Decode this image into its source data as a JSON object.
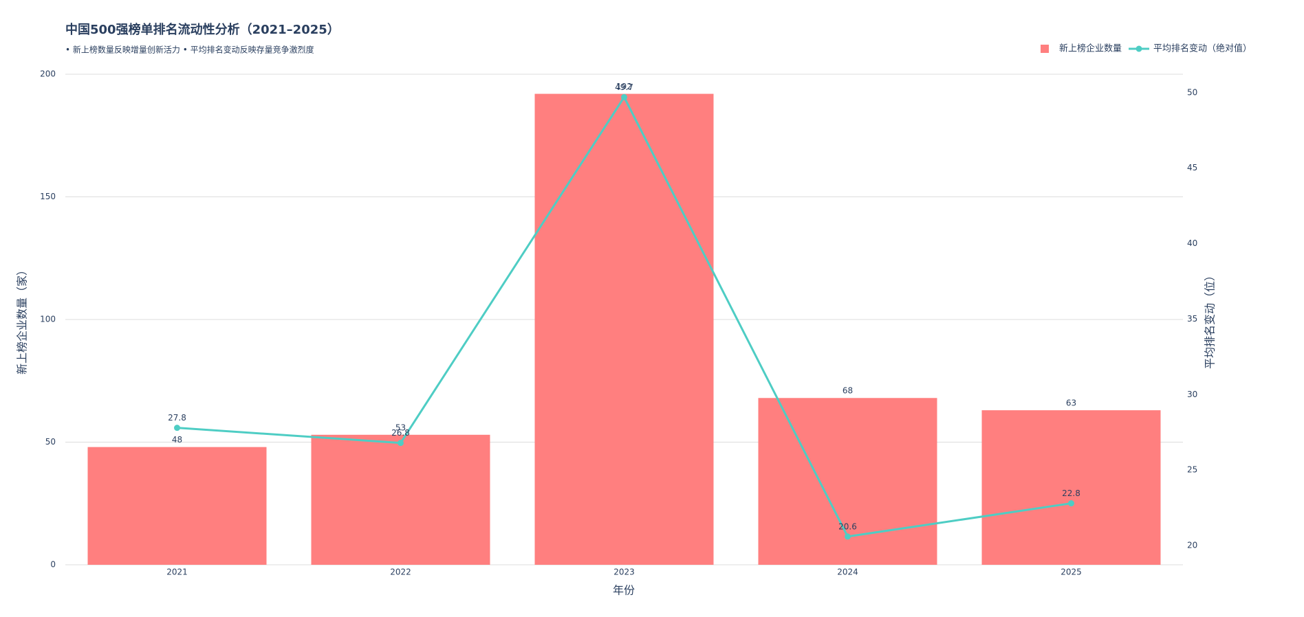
{
  "chart_data": {
    "type": "bar_line",
    "title": "中国500强榜单排名流动性分析（2021–2025）",
    "subtitle": "• 新上榜数量反映增量创新活力 • 平均排名变动反映存量竞争激烈度",
    "x_label": "年份",
    "y_label": "新上榜企业数量（家）",
    "y2_label": "平均排名变动（位）",
    "categories": [
      "2021",
      "2022",
      "2023",
      "2024",
      "2025"
    ],
    "series": [
      {
        "name": "新上榜企业数量",
        "type": "bar",
        "color": "#ff7f7f",
        "values": [
          48,
          53,
          192,
          68,
          63
        ]
      },
      {
        "name": "平均排名变动（绝对值）",
        "type": "line",
        "axis": "y2",
        "color": "#4ecdc4",
        "values": [
          27.8,
          26.8,
          49.7,
          20.6,
          22.8
        ]
      }
    ],
    "ylim": [
      0,
      200
    ],
    "yticks": [
      0,
      50,
      100,
      150,
      200
    ],
    "y2lim": [
      18.73,
      51.22
    ],
    "y2ticks": [
      20,
      25,
      30,
      35,
      40,
      45,
      50
    ],
    "grid": true,
    "legend": "top-right"
  }
}
